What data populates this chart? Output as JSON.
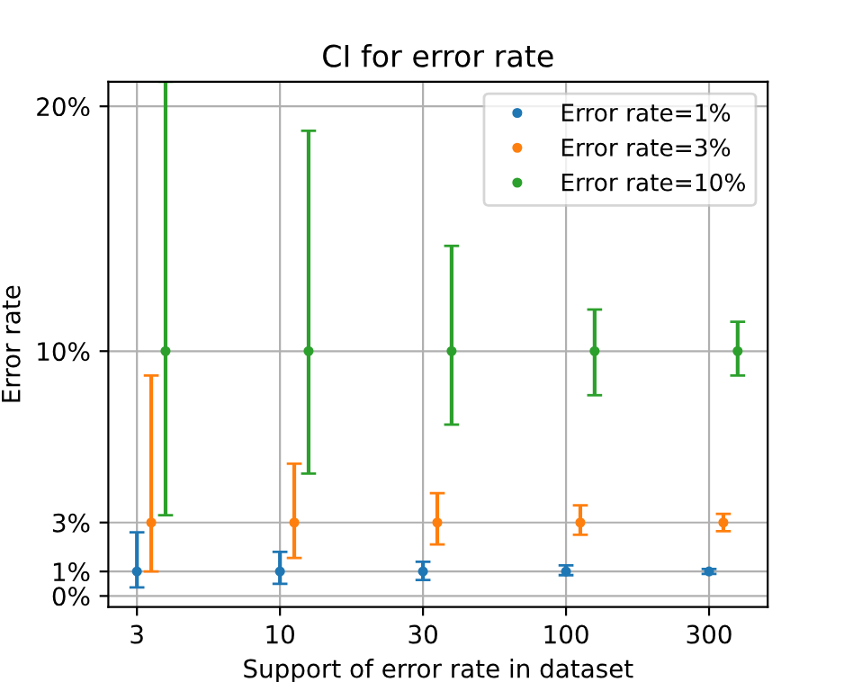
{
  "chart_data": {
    "type": "scatter",
    "title": "CI for error rate",
    "xlabel": "Support of error rate in dataset",
    "ylabel": "Error rate",
    "categories": [
      "3",
      "10",
      "30",
      "100",
      "300"
    ],
    "series": [
      {
        "name": "Error rate=1%",
        "color": "#1f77b4",
        "values": [
          1,
          1,
          1,
          1,
          1
        ],
        "errors": [
          [
            0.35,
            2.6
          ],
          [
            0.5,
            1.8
          ],
          [
            0.65,
            1.4
          ],
          [
            0.85,
            1.25
          ],
          [
            0.9,
            1.1
          ]
        ]
      },
      {
        "name": "Error rate=3%",
        "color": "#ff7f0e",
        "values": [
          3,
          3,
          3,
          3,
          3
        ],
        "errors": [
          [
            1.0,
            9.0
          ],
          [
            1.55,
            5.4
          ],
          [
            2.1,
            4.2
          ],
          [
            2.5,
            3.7
          ],
          [
            2.65,
            3.35
          ]
        ]
      },
      {
        "name": "Error rate=10%",
        "color": "#2ca02c",
        "values": [
          10,
          10,
          10,
          10,
          10
        ],
        "errors": [
          [
            3.3,
            21
          ],
          [
            5.0,
            19.0
          ],
          [
            7.0,
            14.3
          ],
          [
            8.2,
            11.7
          ],
          [
            9.0,
            11.2
          ]
        ]
      }
    ],
    "ylim": [
      -0.45,
      21
    ],
    "yticks": [
      {
        "value": 0,
        "label": "0%"
      },
      {
        "value": 1,
        "label": "1%"
      },
      {
        "value": 3,
        "label": "3%"
      },
      {
        "value": 10,
        "label": "10%"
      },
      {
        "value": 20,
        "label": "20%"
      }
    ],
    "grid": true,
    "legend": "top right",
    "marker": "circle"
  }
}
